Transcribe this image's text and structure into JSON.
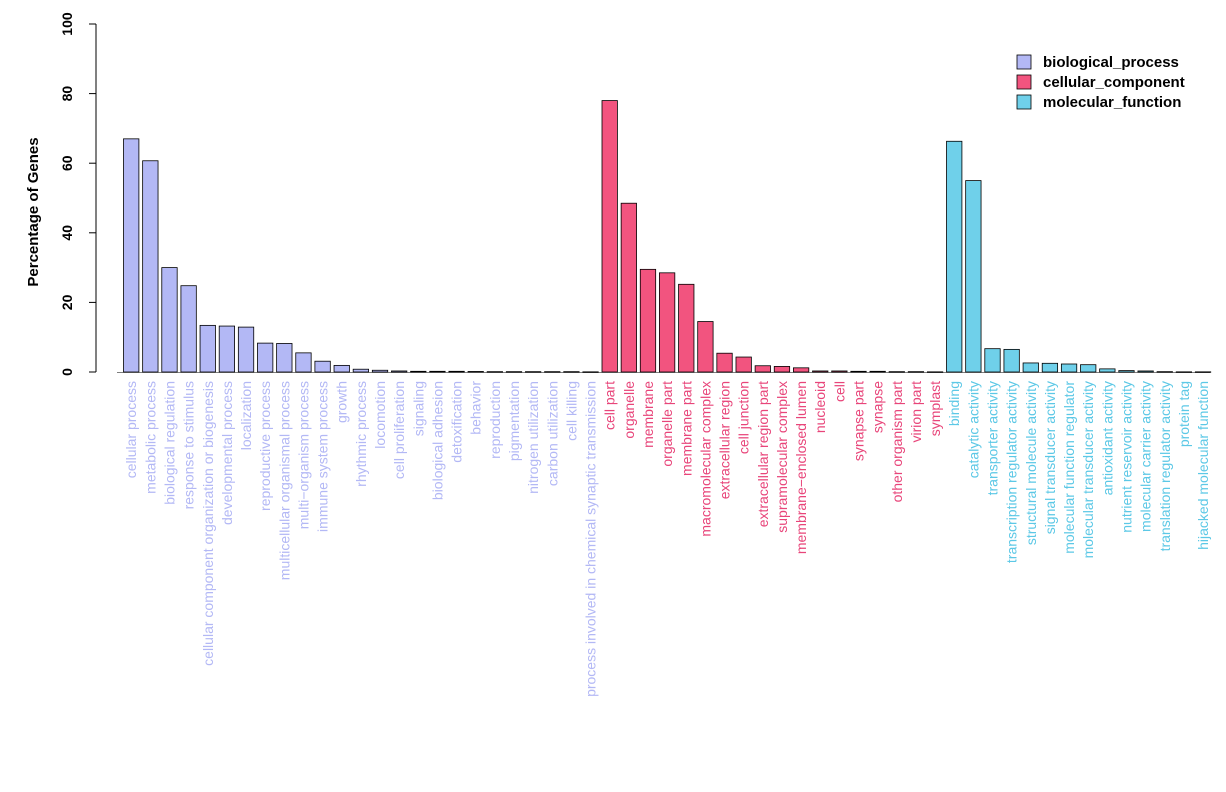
{
  "chart_data": {
    "type": "bar",
    "title": "",
    "xlabel": "",
    "ylabel": "Percentage of Genes",
    "ylim": [
      0,
      100
    ],
    "yticks": [
      "0",
      "20",
      "40",
      "60",
      "80",
      "100"
    ],
    "grid": false,
    "legend_position": "top-right",
    "colors": {
      "biological_process": "#b3b8f5",
      "cellular_component": "#f2547f",
      "molecular_function": "#6fd0ea"
    },
    "label_colors": {
      "biological_process": "#b3b8f5",
      "cellular_component": "#e8457a",
      "molecular_function": "#5cc8e6"
    },
    "series": [
      {
        "name": "biological_process",
        "categories": [
          "cellular process",
          "metabolic process",
          "biological regulation",
          "response to stimulus",
          "cellular component organization or biogenesis",
          "developmental process",
          "localization",
          "reproductive process",
          "multicellular organismal process",
          "multi−organism process",
          "immune system process",
          "growth",
          "rhythmic process",
          "locomotion",
          "cell proliferation",
          "signaling",
          "biological adhesion",
          "detoxification",
          "behavior",
          "reproduction",
          "pigmentation",
          "nitrogen utilization",
          "carbon utilization",
          "cell killing",
          "process involved in chemical synaptic transmission"
        ],
        "values": [
          67,
          60.7,
          30,
          24.8,
          13.4,
          13.2,
          12.9,
          8.3,
          8.2,
          5.5,
          3.1,
          1.9,
          0.8,
          0.5,
          0.3,
          0.2,
          0.2,
          0.2,
          0.15,
          0.1,
          0.1,
          0.1,
          0.1,
          0.1,
          0.05
        ]
      },
      {
        "name": "cellular_component",
        "categories": [
          "cell part",
          "organelle",
          "membrane",
          "organelle part",
          "membrane part",
          "macromolecular complex",
          "extracellular region",
          "cell junction",
          "extracellular region part",
          "supramolecular complex",
          "membrane−enclosed lumen",
          "nucleoid",
          "cell",
          "synapse part",
          "synapse",
          "other organism part",
          "virion part",
          "symplast"
        ],
        "values": [
          78,
          48.5,
          29.5,
          28.5,
          25.2,
          14.5,
          5.4,
          4.3,
          1.8,
          1.6,
          1.2,
          0.3,
          0.3,
          0.2,
          0.2,
          0.1,
          0.1,
          0.05
        ]
      },
      {
        "name": "molecular_function",
        "categories": [
          "binding",
          "catalytic activity",
          "transporter activity",
          "transcription regulator activity",
          "structural molecule activity",
          "signal transducer activity",
          "molecular function regulator",
          "molecular transducer activity",
          "antioxidant activity",
          "nutrient reservoir activity",
          "molecular carrier activity",
          "translation regulator activity",
          "protein tag",
          "hijacked molecular function"
        ],
        "values": [
          66.3,
          55,
          6.7,
          6.5,
          2.6,
          2.5,
          2.3,
          2.1,
          0.9,
          0.4,
          0.3,
          0.1,
          0.05,
          0.05
        ]
      }
    ]
  }
}
